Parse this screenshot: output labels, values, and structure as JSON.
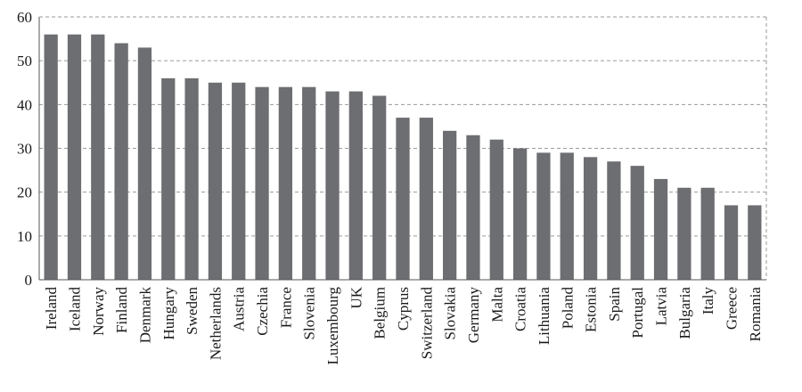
{
  "chart_data": {
    "type": "bar",
    "title": "",
    "xlabel": "",
    "ylabel": "",
    "ylim": [
      0,
      60
    ],
    "yticks": [
      0,
      10,
      20,
      30,
      40,
      50,
      60
    ],
    "grid": true,
    "grid_style": "dashed",
    "bar_color": "#6d6e71",
    "categories": [
      "Ireland",
      "Iceland",
      "Norway",
      "Finland",
      "Denmark",
      "Hungary",
      "Sweden",
      "Netherlands",
      "Austria",
      "Czechia",
      "France",
      "Slovenia",
      "Luxembourg",
      "UK",
      "Belgium",
      "Cyprus",
      "Switzerland",
      "Slovakia",
      "Germany",
      "Malta",
      "Croatia",
      "Lithuania",
      "Poland",
      "Estonia",
      "Spain",
      "Portugal",
      "Latvia",
      "Bulgaria",
      "Italy",
      "Greece",
      "Romania"
    ],
    "values": [
      56,
      56,
      56,
      54,
      53,
      46,
      46,
      45,
      45,
      44,
      44,
      44,
      43,
      43,
      42,
      37,
      37,
      34,
      33,
      32,
      30,
      29,
      29,
      28,
      27,
      26,
      23,
      21,
      21,
      17,
      17
    ]
  }
}
